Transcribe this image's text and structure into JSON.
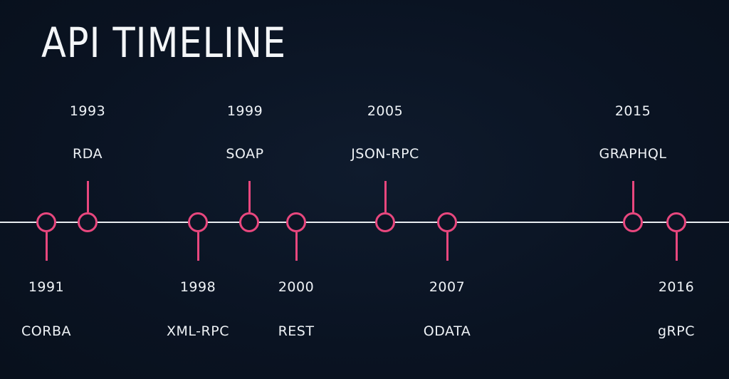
{
  "title": "API TIMELINE",
  "colors": {
    "background": "#0b1424",
    "line": "#e8ecf0",
    "accent": "#e8477e",
    "text": "#eef2f6"
  },
  "events": [
    {
      "year": "1991",
      "name": "CORBA",
      "side": "below"
    },
    {
      "year": "1993",
      "name": "RDA",
      "side": "above"
    },
    {
      "year": "1998",
      "name": "XML-RPC",
      "side": "below"
    },
    {
      "year": "1999",
      "name": "SOAP",
      "side": "above"
    },
    {
      "year": "2000",
      "name": "REST",
      "side": "below"
    },
    {
      "year": "2005",
      "name": "JSON-RPC",
      "side": "above"
    },
    {
      "year": "2007",
      "name": "ODATA",
      "side": "below"
    },
    {
      "year": "2015",
      "name": "GRAPHQL",
      "side": "above"
    },
    {
      "year": "2016",
      "name": "gRPC",
      "side": "below"
    }
  ]
}
